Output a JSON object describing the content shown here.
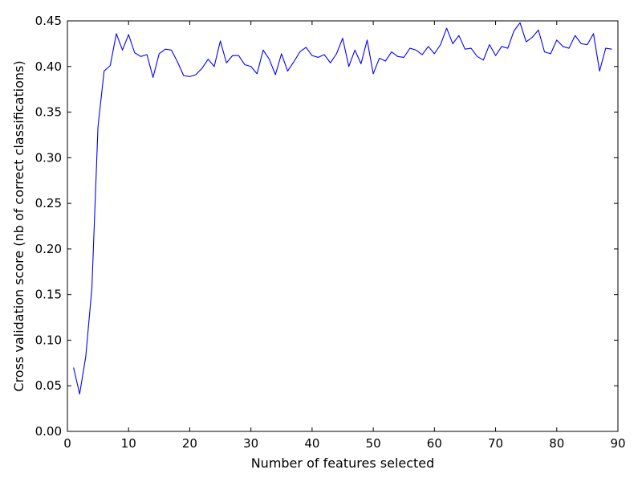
{
  "chart_data": {
    "type": "line",
    "title": "",
    "xlabel": "Number of features selected",
    "ylabel": "Cross validation score (nb of correct classifications)",
    "xlim": [
      0,
      90
    ],
    "ylim": [
      0,
      0.45
    ],
    "x_ticks": [
      0,
      10,
      20,
      30,
      40,
      50,
      60,
      70,
      80,
      90
    ],
    "x_tick_labels": [
      "0",
      "10",
      "20",
      "30",
      "40",
      "50",
      "60",
      "70",
      "80",
      "90"
    ],
    "y_ticks": [
      0,
      0.05,
      0.1,
      0.15,
      0.2,
      0.25,
      0.3,
      0.35,
      0.4,
      0.45
    ],
    "y_tick_labels": [
      "0.00",
      "0.05",
      "0.10",
      "0.15",
      "0.20",
      "0.25",
      "0.30",
      "0.35",
      "0.40",
      "0.45"
    ],
    "grid": false,
    "series": [
      {
        "color": "#0000ff",
        "x": [
          1,
          2,
          3,
          4,
          5,
          6,
          7,
          8,
          9,
          10,
          11,
          12,
          13,
          14,
          15,
          16,
          17,
          18,
          19,
          20,
          21,
          22,
          23,
          24,
          25,
          26,
          27,
          28,
          29,
          30,
          31,
          32,
          33,
          34,
          35,
          36,
          37,
          38,
          39,
          40,
          41,
          42,
          43,
          44,
          45,
          46,
          47,
          48,
          49,
          50,
          51,
          52,
          53,
          54,
          55,
          56,
          57,
          58,
          59,
          60,
          61,
          62,
          63,
          64,
          65,
          66,
          67,
          68,
          69,
          70,
          71,
          72,
          73,
          74,
          75,
          76,
          77,
          78,
          79,
          80,
          81,
          82,
          83,
          84,
          85,
          86,
          87,
          88,
          89
        ],
        "y": [
          0.07,
          0.041,
          0.082,
          0.157,
          0.334,
          0.395,
          0.401,
          0.436,
          0.418,
          0.435,
          0.415,
          0.411,
          0.413,
          0.388,
          0.414,
          0.419,
          0.418,
          0.405,
          0.39,
          0.389,
          0.391,
          0.398,
          0.408,
          0.4,
          0.428,
          0.404,
          0.412,
          0.412,
          0.402,
          0.4,
          0.392,
          0.418,
          0.408,
          0.391,
          0.414,
          0.395,
          0.405,
          0.416,
          0.421,
          0.412,
          0.41,
          0.413,
          0.404,
          0.414,
          0.431,
          0.4,
          0.418,
          0.403,
          0.429,
          0.392,
          0.409,
          0.406,
          0.416,
          0.411,
          0.41,
          0.42,
          0.418,
          0.413,
          0.422,
          0.414,
          0.424,
          0.442,
          0.425,
          0.434,
          0.419,
          0.42,
          0.411,
          0.407,
          0.424,
          0.412,
          0.422,
          0.42,
          0.439,
          0.448,
          0.427,
          0.432,
          0.44,
          0.416,
          0.414,
          0.429,
          0.422,
          0.42,
          0.434,
          0.425,
          0.424,
          0.436,
          0.395,
          0.42,
          0.419
        ]
      }
    ]
  }
}
